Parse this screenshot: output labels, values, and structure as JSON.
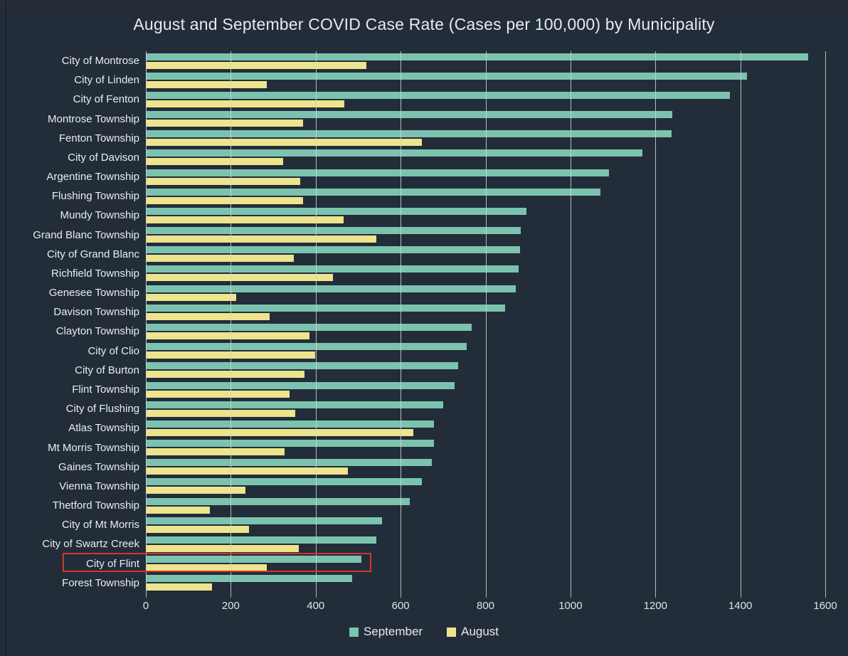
{
  "chart_data": {
    "type": "bar",
    "orientation": "horizontal",
    "title": "August and September COVID Case Rate (Cases per 100,000) by Municipality",
    "xlabel": "",
    "ylabel": "",
    "xlim": [
      0,
      1600
    ],
    "x_ticks": [
      0,
      200,
      400,
      600,
      800,
      1000,
      1200,
      1400,
      1600
    ],
    "grid": true,
    "legend_position": "bottom-center",
    "highlighted_category": "City of Flint",
    "categories": [
      "City of Montrose",
      "City of Linden",
      "City of Fenton",
      "Montrose Township",
      "Fenton Township",
      "City of Davison",
      "Argentine Township",
      "Flushing Township",
      "Mundy Township",
      "Grand Blanc Township",
      "City of Grand Blanc",
      "Richfield Township",
      "Genesee Township",
      "Davison Township",
      "Clayton Township",
      "City of Clio",
      "City of Burton",
      "Flint Township",
      "City of Flushing",
      "Atlas Township",
      "Mt Morris Township",
      "Gaines Township",
      "Vienna Township",
      "Thetford Township",
      "City of Mt Morris",
      "City of Swartz Creek",
      "City of Flint",
      "Forest Township"
    ],
    "series": [
      {
        "name": "September",
        "color": "#7cc3af",
        "values": [
          1560,
          1415,
          1375,
          1240,
          1238,
          1170,
          1090,
          1070,
          896,
          883,
          881,
          878,
          872,
          846,
          768,
          755,
          736,
          727,
          701,
          679,
          678,
          674,
          650,
          622,
          556,
          543,
          507,
          486
        ]
      },
      {
        "name": "August",
        "color": "#ede48d",
        "values": [
          520,
          285,
          468,
          370,
          650,
          324,
          364,
          371,
          465,
          542,
          348,
          440,
          212,
          292,
          385,
          398,
          374,
          339,
          351,
          630,
          326,
          476,
          235,
          150,
          243,
          360,
          285,
          155
        ]
      }
    ]
  },
  "colors": {
    "background": "#222d39",
    "text": "#e8ecee",
    "gridline": "#cbd1d6",
    "highlight_box": "#d7342a"
  }
}
